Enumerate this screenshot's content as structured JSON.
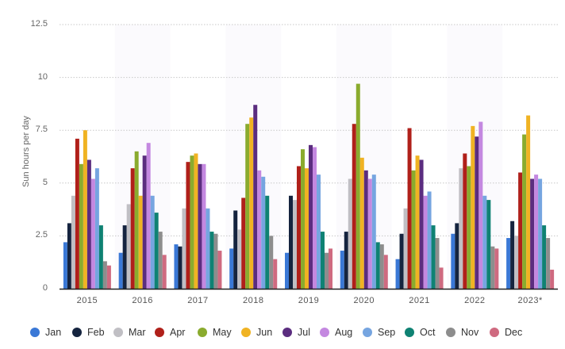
{
  "chart_data": {
    "type": "bar",
    "title": "",
    "xlabel": "",
    "ylabel": "Sun hours per day",
    "ylim": [
      0,
      12.5
    ],
    "yticks": [
      "0",
      "2.5",
      "5",
      "7.5",
      "10",
      "12.5"
    ],
    "grid": true,
    "legend_position": "bottom",
    "categories": [
      "2015",
      "2016",
      "2017",
      "2018",
      "2019",
      "2020",
      "2021",
      "2022",
      "2023*"
    ],
    "series": [
      {
        "name": "Jan",
        "color": "#3a78d6",
        "values": [
          2.2,
          1.7,
          2.1,
          1.9,
          1.7,
          1.8,
          1.4,
          2.6,
          2.4
        ]
      },
      {
        "name": "Feb",
        "color": "#15243f",
        "values": [
          3.1,
          3.0,
          2.0,
          3.7,
          4.4,
          2.7,
          2.6,
          3.1,
          3.2
        ]
      },
      {
        "name": "Mar",
        "color": "#c0bfc4",
        "values": [
          4.4,
          4.0,
          3.8,
          2.8,
          4.2,
          5.2,
          3.8,
          5.7,
          2.5
        ]
      },
      {
        "name": "Apr",
        "color": "#b0201a",
        "values": [
          7.1,
          5.7,
          6.0,
          4.3,
          5.8,
          7.8,
          7.6,
          6.4,
          5.5
        ]
      },
      {
        "name": "May",
        "color": "#8aab2e",
        "values": [
          5.9,
          6.5,
          6.3,
          7.8,
          6.6,
          9.7,
          5.6,
          5.8,
          7.3
        ]
      },
      {
        "name": "Jun",
        "color": "#f0b323",
        "values": [
          7.5,
          4.4,
          6.4,
          8.1,
          5.7,
          6.2,
          6.3,
          7.7,
          8.2
        ]
      },
      {
        "name": "Jul",
        "color": "#5b2d7f",
        "values": [
          6.1,
          6.3,
          5.9,
          8.7,
          6.8,
          5.6,
          6.1,
          7.2,
          5.2
        ]
      },
      {
        "name": "Aug",
        "color": "#c488e0",
        "values": [
          5.2,
          6.9,
          5.9,
          5.6,
          6.7,
          5.2,
          4.4,
          7.9,
          5.4
        ]
      },
      {
        "name": "Sep",
        "color": "#76a5e0",
        "values": [
          5.7,
          4.4,
          3.8,
          5.3,
          5.4,
          5.4,
          4.6,
          4.4,
          5.2
        ]
      },
      {
        "name": "Oct",
        "color": "#0f8273",
        "values": [
          3.0,
          3.6,
          2.7,
          4.4,
          2.7,
          2.2,
          3.0,
          4.2,
          3.0
        ]
      },
      {
        "name": "Nov",
        "color": "#8d8d8d",
        "values": [
          1.3,
          2.7,
          2.6,
          2.5,
          1.7,
          2.1,
          2.4,
          2.0,
          2.4
        ]
      },
      {
        "name": "Dec",
        "color": "#cf6a80",
        "values": [
          1.1,
          1.6,
          1.8,
          1.4,
          1.9,
          1.6,
          1.0,
          1.9,
          0.9
        ]
      }
    ]
  },
  "colors": {
    "gridline": "#c8c8c8",
    "axis": "#222222",
    "band": "#fbfafd"
  }
}
